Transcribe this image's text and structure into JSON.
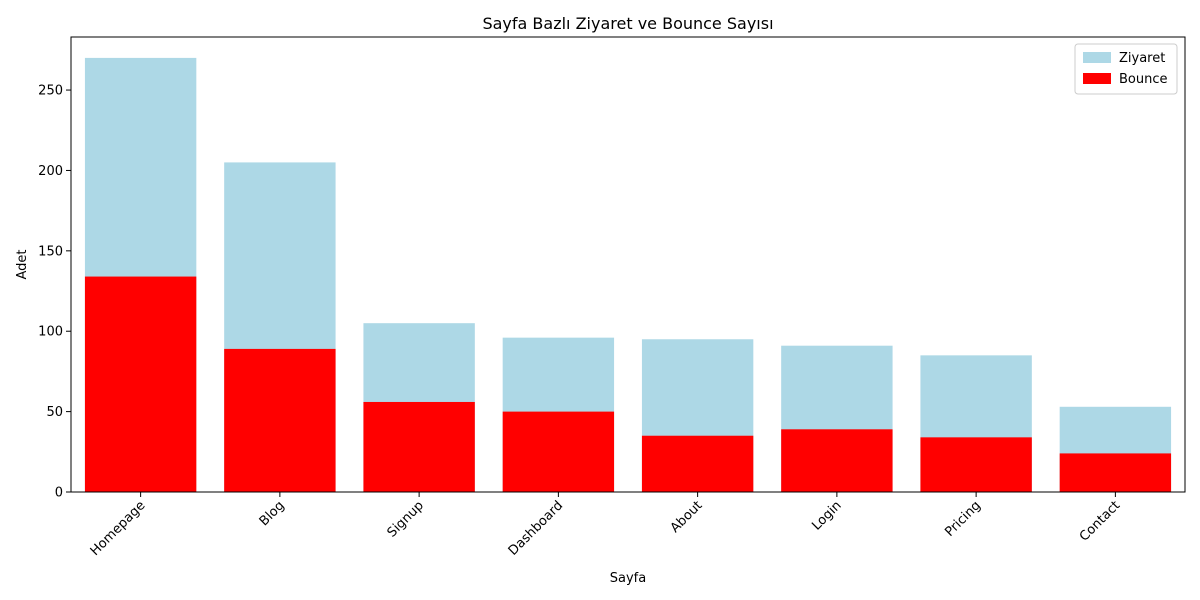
{
  "chart_data": {
    "type": "bar",
    "title": "Sayfa Bazlı Ziyaret ve Bounce Sayısı",
    "xlabel": "Sayfa",
    "ylabel": "Adet",
    "categories": [
      "Homepage",
      "Blog",
      "Signup",
      "Dashboard",
      "About",
      "Login",
      "Pricing",
      "Contact"
    ],
    "series": [
      {
        "name": "Ziyaret",
        "color": "#add8e6",
        "values": [
          270,
          205,
          105,
          96,
          95,
          91,
          85,
          53
        ]
      },
      {
        "name": "Bounce",
        "color": "#ff0000",
        "values": [
          134,
          89,
          56,
          50,
          35,
          39,
          34,
          24
        ]
      }
    ],
    "ylim": [
      0,
      283
    ],
    "yticks": [
      0,
      50,
      100,
      150,
      200,
      250
    ],
    "overlay": true,
    "legend": "top-right",
    "grid": false,
    "xtick_rotation": 45
  }
}
